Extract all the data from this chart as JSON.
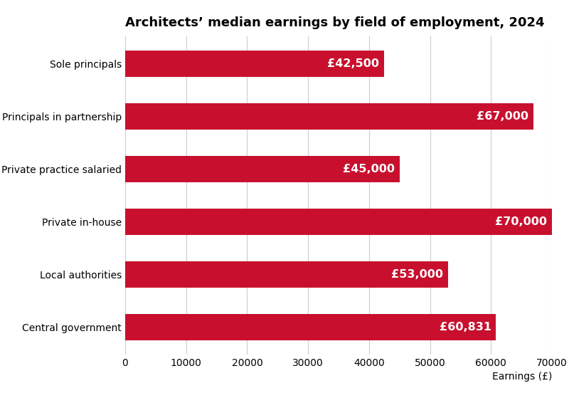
{
  "title": "Architects’ median earnings by field of employment, 2024",
  "categories": [
    "Central government",
    "Local authorities",
    "Private in-house",
    "Private practice salaried",
    "Principals in partnership",
    "Sole principals"
  ],
  "values": [
    60831,
    53000,
    70000,
    45000,
    67000,
    42500
  ],
  "labels": [
    "£60,831",
    "£53,000",
    "£70,000",
    "£45,000",
    "£67,000",
    "£42,500"
  ],
  "bar_color": "#c8102e",
  "label_color": "#ffffff",
  "background_color": "#ffffff",
  "title_fontsize": 13,
  "label_fontsize": 11.5,
  "tick_fontsize": 10,
  "xlabel": "Earnings (£)",
  "xlim": [
    0,
    70000
  ],
  "xticks": [
    0,
    10000,
    20000,
    30000,
    40000,
    50000,
    60000,
    70000
  ],
  "xtick_labels": [
    "0",
    "10000",
    "20000",
    "30000",
    "40000",
    "50000",
    "60000",
    "70000"
  ],
  "grid_color": "#cccccc",
  "bar_height": 0.5
}
